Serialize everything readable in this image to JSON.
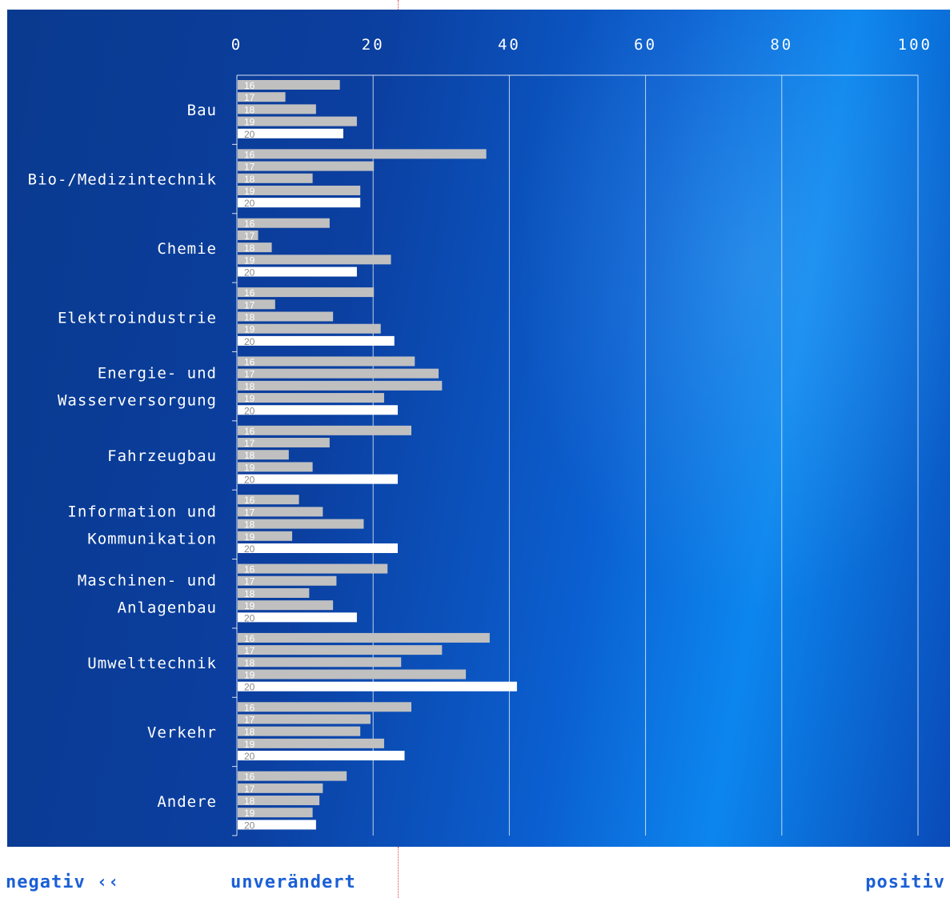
{
  "footer": {
    "negative": "negativ ‹‹",
    "unchanged": "unverändert",
    "positive": "positiv"
  },
  "colors": {
    "bar_default": "#c0c0c0",
    "bar_highlight": "#ffffff",
    "label_on_grey": "#ffffff",
    "label_on_white": "#8a8a8a",
    "footer_text": "#1a5fd6",
    "marker_line": "#d44444"
  },
  "chart_data": {
    "type": "bar",
    "orientation": "horizontal",
    "xlim": [
      0,
      100
    ],
    "x_ticks": [
      "0",
      "20",
      "40",
      "60",
      "80",
      "100"
    ],
    "grid": true,
    "series_labels": [
      "16",
      "17",
      "18",
      "19",
      "20"
    ],
    "highlight_series": "20",
    "categories": [
      {
        "lines": [
          "Bau"
        ],
        "values": [
          15,
          7,
          11.5,
          17.5,
          15.5
        ]
      },
      {
        "lines": [
          "Bio-/Medizintechnik"
        ],
        "values": [
          36.5,
          20,
          11,
          18,
          18
        ]
      },
      {
        "lines": [
          "Chemie"
        ],
        "values": [
          13.5,
          3,
          5,
          22.5,
          17.5
        ]
      },
      {
        "lines": [
          "Elektroindustrie"
        ],
        "values": [
          20,
          5.5,
          14,
          21,
          23
        ]
      },
      {
        "lines": [
          "Energie- und",
          "Wasserversorgung"
        ],
        "values": [
          26,
          29.5,
          30,
          21.5,
          23.5
        ]
      },
      {
        "lines": [
          "Fahrzeugbau"
        ],
        "values": [
          25.5,
          13.5,
          7.5,
          11,
          23.5
        ]
      },
      {
        "lines": [
          "Information und",
          "Kommunikation"
        ],
        "values": [
          9,
          12.5,
          18.5,
          8,
          23.5
        ]
      },
      {
        "lines": [
          "Maschinen- und",
          "Anlagenbau"
        ],
        "values": [
          22,
          14.5,
          10.5,
          14,
          17.5
        ]
      },
      {
        "lines": [
          "Umwelttechnik"
        ],
        "values": [
          37,
          30,
          24,
          33.5,
          41
        ]
      },
      {
        "lines": [
          "Verkehr"
        ],
        "values": [
          25.5,
          19.5,
          18,
          21.5,
          24.5
        ]
      },
      {
        "lines": [
          "Andere"
        ],
        "values": [
          16,
          12.5,
          12,
          11,
          11.5
        ]
      }
    ]
  }
}
